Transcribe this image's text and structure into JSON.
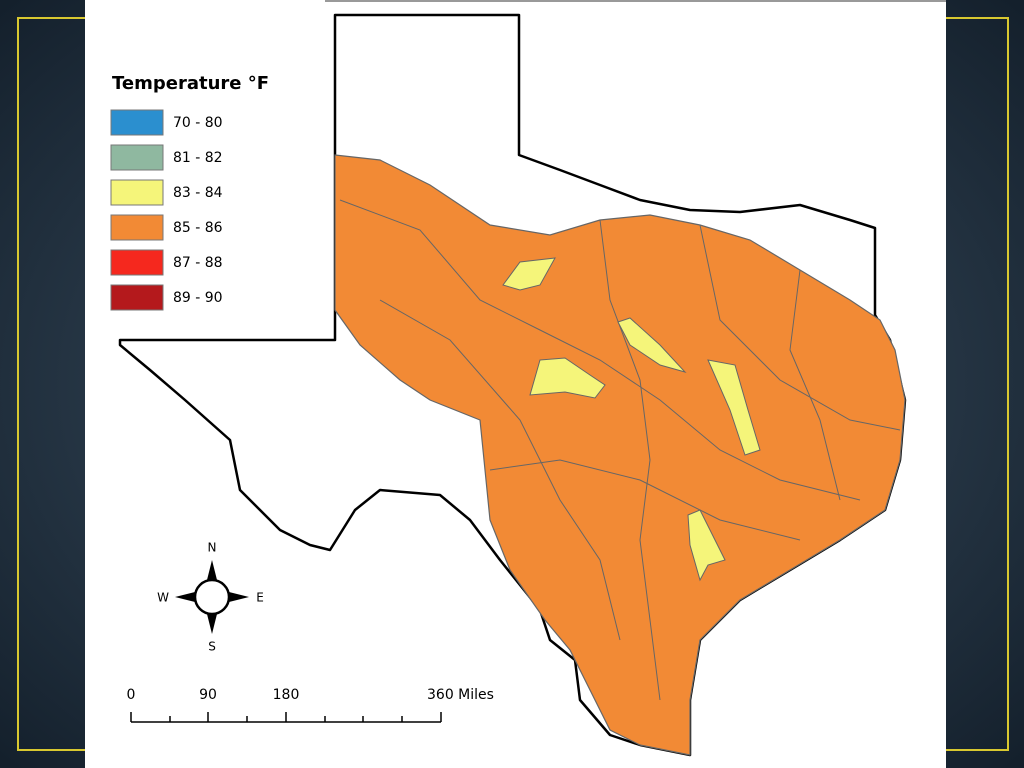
{
  "legend": {
    "title": "Temperature °F",
    "items": [
      {
        "label": "70 - 80",
        "color": "#2b8fcf"
      },
      {
        "label": "81 - 82",
        "color": "#8fb8a0"
      },
      {
        "label": "83 - 84",
        "color": "#f5f57a"
      },
      {
        "label": "85 - 86",
        "color": "#f28a35"
      },
      {
        "label": "87 - 88",
        "color": "#f5281e"
      },
      {
        "label": "89 - 90",
        "color": "#b4191c"
      }
    ]
  },
  "compass": {
    "north": "N",
    "south": "S",
    "east": "E",
    "west": "W"
  },
  "scale_bar": {
    "labels": [
      "0",
      "90",
      "180",
      "360 Miles"
    ]
  }
}
